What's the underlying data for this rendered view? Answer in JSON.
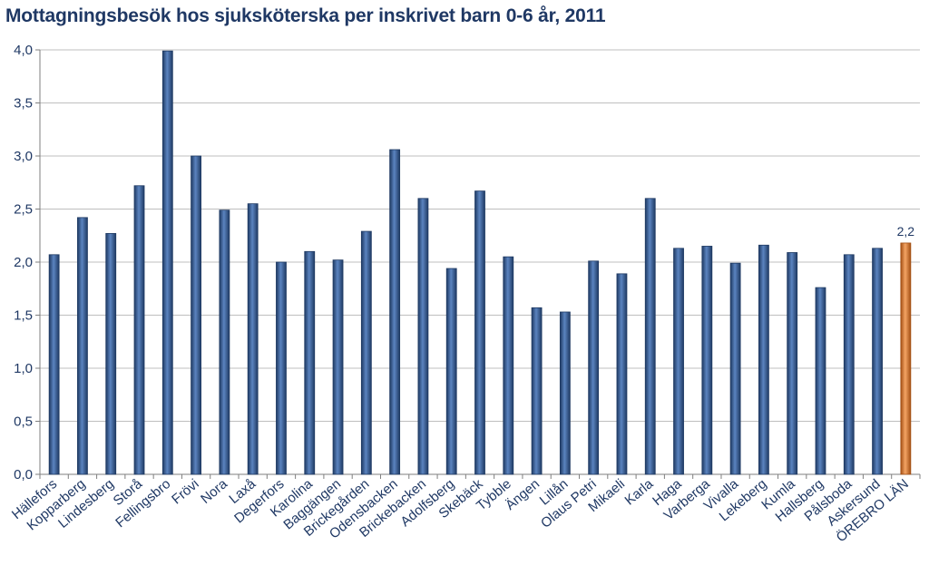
{
  "chart_data": {
    "type": "bar",
    "title": "Mottagningsbesök hos sjuksköterska per inskrivet barn 0-6 år, 2011",
    "xlabel": "",
    "ylabel": "",
    "ylim": [
      0,
      4
    ],
    "yticks": [
      "0,0",
      "0,5",
      "1,0",
      "1,5",
      "2,0",
      "2,5",
      "3,0",
      "3,5",
      "4,0"
    ],
    "grid": true,
    "legend": "none",
    "categories": [
      "Hällefors",
      "Kopparberg",
      "Lindesberg",
      "Storå",
      "Fellingsbro",
      "Frövi",
      "Nora",
      "Laxå",
      "Degerfors",
      "Karolina",
      "Baggängen",
      "Brickegården",
      "Odensbacken",
      "Brickebacken",
      "Adolfsberg",
      "Skebäck",
      "Tybble",
      "Ängen",
      "Lillån",
      "Olaus Petri",
      "Mikaeli",
      "Karla",
      "Haga",
      "Varberga",
      "Vivalla",
      "Lekeberg",
      "Kumla",
      "Hallsberg",
      "Pålsboda",
      "Askersund",
      "ÖREBRO LÄN"
    ],
    "values": [
      2.07,
      2.42,
      2.27,
      2.72,
      3.99,
      3.0,
      2.49,
      2.55,
      2.0,
      2.1,
      2.02,
      2.29,
      3.06,
      2.6,
      1.94,
      2.67,
      2.05,
      1.57,
      1.53,
      2.01,
      1.89,
      2.6,
      2.13,
      2.15,
      1.99,
      2.16,
      2.09,
      1.76,
      2.07,
      2.13,
      2.18
    ],
    "highlight_index": 30,
    "data_labels": [
      {
        "index": 30,
        "text": "2,2"
      }
    ],
    "colors": {
      "bar": "#3a5f96",
      "bar_dark": "#1f3a63",
      "highlight": "#e07b30",
      "highlight_dark": "#a34f14",
      "grid": "#bfbfbf",
      "text": "#1f3864"
    }
  }
}
